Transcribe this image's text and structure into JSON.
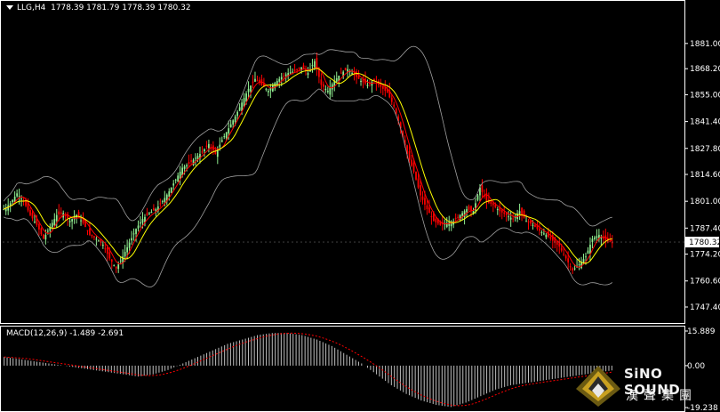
{
  "header": {
    "symbol": "LLG,H4",
    "ohlc": "1778.39 1781.79 1778.39 1780.32"
  },
  "price_axis": {
    "ticks": [
      "1881.00",
      "1868.20",
      "1855.00",
      "1841.40",
      "1827.80",
      "1814.60",
      "1801.00",
      "1787.40",
      "1774.20",
      "1760.60",
      "1747.40"
    ],
    "current_price": "1780.32"
  },
  "macd": {
    "label": "MACD(12,26,9) -1.489 -2.691",
    "ticks": [
      "15.889",
      "0.00",
      "-19.238"
    ]
  },
  "watermark": {
    "brand": "SiNO SOUND",
    "subtitle": "漢聲集團"
  },
  "colors": {
    "background": "#000000",
    "bull_candle": "#90ee90",
    "bear_candle": "#ff0000",
    "ma_fast": "#ffff00",
    "ma_slow": "#ff0000",
    "bollinger": "#a0a0a0",
    "macd_histogram": "#c0c0c0",
    "macd_signal": "#ff0000",
    "text": "#ffffff"
  },
  "chart_data": {
    "type": "candlestick",
    "y_range": [
      1747.4,
      1894
    ],
    "close_path": [
      1797,
      1800,
      1805,
      1801,
      1794,
      1789,
      1782,
      1788,
      1794,
      1795,
      1791,
      1794,
      1790,
      1784,
      1782,
      1779,
      1772,
      1767,
      1773,
      1780,
      1787,
      1792,
      1795,
      1797,
      1801,
      1806,
      1812,
      1818,
      1820,
      1823,
      1826,
      1830,
      1825,
      1832,
      1838,
      1844,
      1851,
      1858,
      1863,
      1860,
      1857,
      1861,
      1864,
      1866,
      1867,
      1869,
      1866,
      1872,
      1860,
      1857,
      1862,
      1866,
      1868,
      1865,
      1862,
      1860,
      1862,
      1859,
      1856,
      1849,
      1838,
      1825,
      1816,
      1804,
      1797,
      1791,
      1789,
      1790,
      1791,
      1794,
      1797,
      1796,
      1808,
      1801,
      1799,
      1796,
      1794,
      1792,
      1796,
      1791,
      1789,
      1786,
      1784,
      1781,
      1778,
      1772,
      1766,
      1769,
      1773,
      1782,
      1784,
      1781,
      1780
    ],
    "macd_hist_path": [
      4,
      3,
      2,
      1,
      0,
      -1,
      -2,
      -3,
      -4,
      -5,
      -4,
      -2,
      1,
      4,
      7,
      10,
      12,
      14,
      15,
      15,
      14,
      12,
      9,
      5,
      1,
      -4,
      -9,
      -13,
      -16,
      -18,
      -19,
      -17,
      -14,
      -11,
      -9,
      -8,
      -7,
      -6,
      -5,
      -4,
      -3,
      -2
    ],
    "current_price": 1780.32
  }
}
